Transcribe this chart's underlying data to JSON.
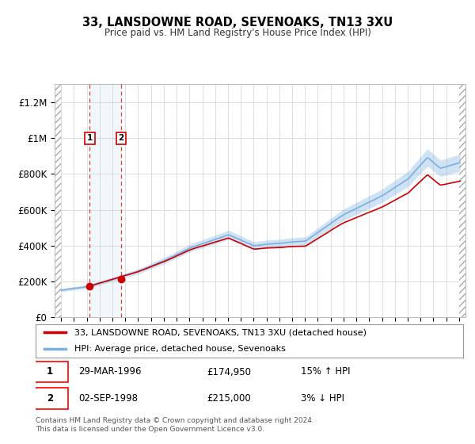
{
  "title": "33, LANSDOWNE ROAD, SEVENOAKS, TN13 3XU",
  "subtitle": "Price paid vs. HM Land Registry's House Price Index (HPI)",
  "legend_line1": "33, LANSDOWNE ROAD, SEVENOAKS, TN13 3XU (detached house)",
  "legend_line2": "HPI: Average price, detached house, Sevenoaks",
  "sale1_date": "29-MAR-1996",
  "sale1_price": "£174,950",
  "sale1_hpi": "15% ↑ HPI",
  "sale1_year": 1996.23,
  "sale1_value": 174950,
  "sale2_date": "02-SEP-1998",
  "sale2_price": "£215,000",
  "sale2_hpi": "3% ↓ HPI",
  "sale2_year": 1998.67,
  "sale2_value": 215000,
  "footer": "Contains HM Land Registry data © Crown copyright and database right 2024.\nThis data is licensed under the Open Government Licence v3.0.",
  "red_color": "#cc0000",
  "blue_color": "#7aafe0",
  "blue_fill_color": "#d0e4f5",
  "hatch_color": "#bbbbbb",
  "xlim_left": 1993.5,
  "xlim_right": 2025.5,
  "ylim_bottom": 0,
  "ylim_top": 1300000,
  "yticks": [
    0,
    200000,
    400000,
    600000,
    800000,
    1000000,
    1200000
  ],
  "ytick_labels": [
    "£0",
    "£200K",
    "£400K",
    "£600K",
    "£800K",
    "£1M",
    "£1.2M"
  ],
  "xticks": [
    1994,
    1995,
    1996,
    1997,
    1998,
    1999,
    2000,
    2001,
    2002,
    2003,
    2004,
    2005,
    2006,
    2007,
    2008,
    2009,
    2010,
    2011,
    2012,
    2013,
    2014,
    2015,
    2016,
    2017,
    2018,
    2019,
    2020,
    2021,
    2022,
    2023,
    2024,
    2025
  ],
  "background_color": "#ffffff",
  "plot_bg_color": "#ffffff",
  "grid_color": "#cccccc"
}
